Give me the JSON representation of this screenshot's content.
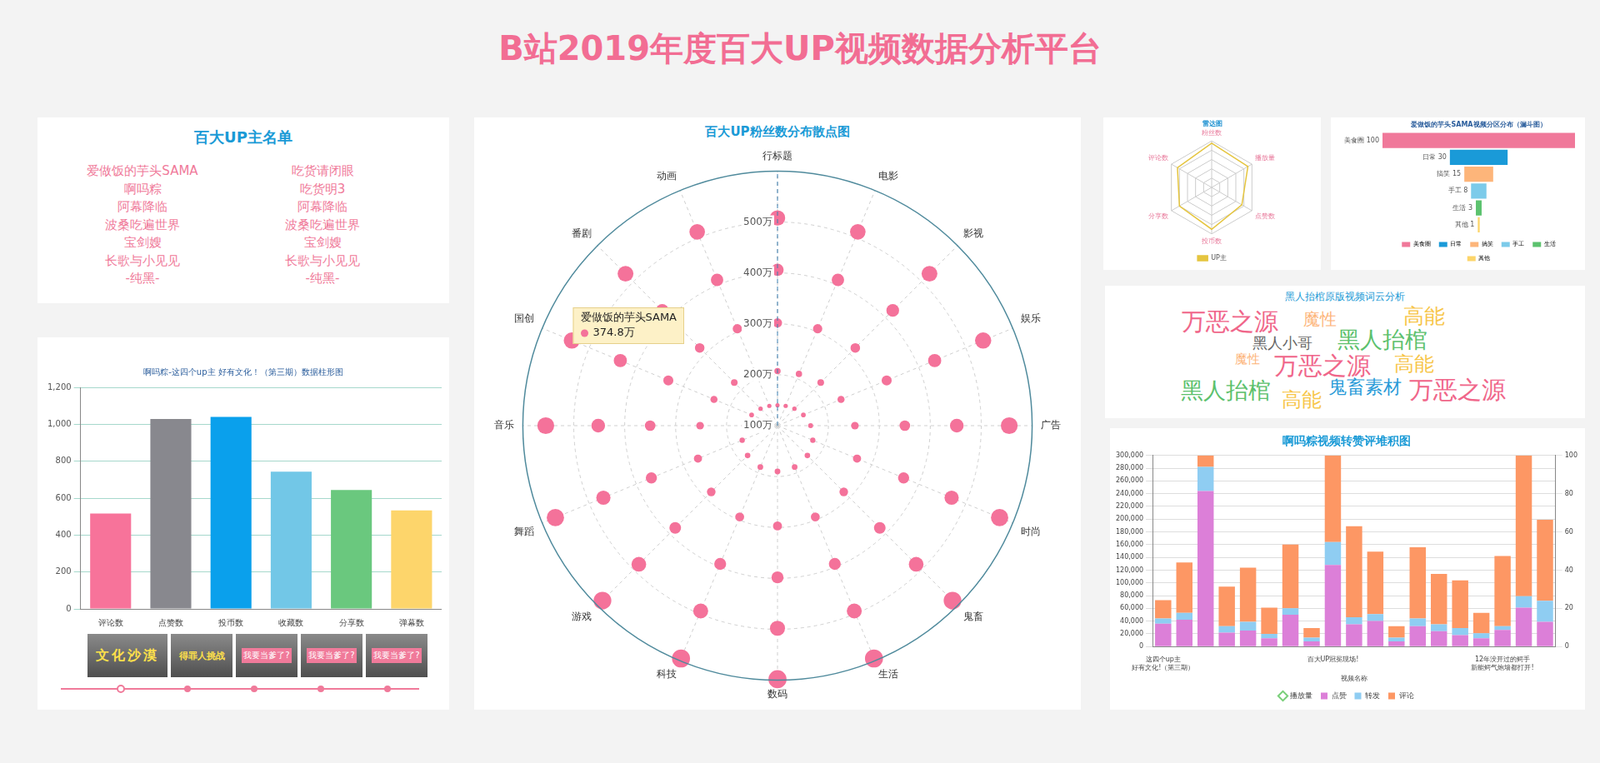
{
  "title": "B站2019年度百大UP视频数据分析平台",
  "name_list": {
    "title": "百大UP主名单",
    "columns": [
      [
        "爱做饭的芋头SAMA",
        "啊吗粽",
        "阿幕降临",
        "波桑吃遍世界",
        "宝剑嫂",
        "长歌与小见见",
        "-纯黑-"
      ],
      [
        "吃货请闭眼",
        "吃货明3",
        "阿幕降临",
        "波桑吃遍世界",
        "宝剑嫂",
        "长歌与小见见",
        "-纯黑-"
      ]
    ]
  },
  "chart_data": [
    {
      "type": "bar",
      "title": "啊吗粽-这四个up主 好有文化！（第三期）数据柱形图",
      "categories": [
        "评论数",
        "点赞数",
        "投币数",
        "收藏数",
        "分享数",
        "弹幕数"
      ],
      "values": [
        517,
        1029,
        1040,
        743,
        644,
        534
      ],
      "colors": [
        "#f7739a",
        "#88888e",
        "#0aa0ec",
        "#72c7e7",
        "#6ac87e",
        "#fdd56b"
      ],
      "ylim": [
        0,
        1200
      ],
      "yticks": [
        0,
        200,
        400,
        600,
        800,
        {
          "value": 1000,
          "label": "1,000"
        },
        {
          "value": 1200,
          "label": "1,200"
        }
      ],
      "grid": true,
      "thumbnails": [
        "文化沙漠",
        "得罪人挑战",
        "我要当爹了?",
        "我要当爹了?",
        "我要当爹了?"
      ]
    },
    {
      "type": "scatter",
      "title": "百大UP粉丝数分布散点图",
      "categories": [
        "行标题",
        "电影",
        "影视",
        "娱乐",
        "广告",
        "时尚",
        "鬼畜",
        "生活",
        "数码",
        "科技",
        "游戏",
        "舞蹈",
        "音乐",
        "国创",
        "番剧",
        "动画"
      ],
      "ylim": [
        100,
        600
      ],
      "yticks": [
        {
          "value": 100,
          "label": "100万"
        },
        {
          "value": 200,
          "label": "200万"
        },
        {
          "value": 300,
          "label": "300万"
        },
        {
          "value": 400,
          "label": "400万"
        },
        {
          "value": 500,
          "label": "500万"
        }
      ],
      "grid": true,
      "series": [
        {
          "color": "#f4729a",
          "values": [
            508,
            512,
            522,
            537,
            555,
            572,
            586,
            595,
            598,
            595,
            586,
            572,
            555,
            537,
            522,
            512
          ]
        },
        {
          "color": "#f4729a",
          "values": [
            406,
            410,
            420,
            434,
            452,
            470,
            485,
            494,
            498,
            494,
            485,
            470,
            452,
            434,
            420,
            410
          ]
        },
        {
          "color": "#f4729a",
          "values": [
            302,
            306,
            316,
            332,
            350,
            368,
            384,
            394,
            398,
            394,
            384,
            368,
            350,
            332,
            316,
            306
          ]
        },
        {
          "color": "#f4729a",
          "values": [
            207,
            210,
            220,
            235,
            252,
            269,
            284,
            294,
            297,
            294,
            284,
            269,
            252,
            235,
            220,
            210
          ]
        },
        {
          "color": "#f4729a",
          "values": [
            140,
            142,
            147,
            155,
            165,
            175,
            183,
            188,
            190,
            188,
            183,
            175,
            165,
            155,
            147,
            142
          ]
        }
      ],
      "annotations": [
        {
          "title": "爱做饭的芋头SAMA",
          "text": "374.8万"
        }
      ]
    },
    {
      "type": "radar",
      "title": "雷达图",
      "categories": [
        "粉丝数",
        "播放量",
        "点赞数",
        "投币数",
        "分享数",
        "评论数"
      ],
      "series": [
        {
          "name": "UP主",
          "color": "#e5c53f",
          "values": [
            95,
            90,
            75,
            90,
            80,
            85
          ]
        }
      ],
      "ylim": [
        0,
        100
      ],
      "yticks": [
        0,
        20,
        40,
        60,
        80,
        100
      ],
      "tick_labels": false,
      "grid": true,
      "legend": "bottom"
    },
    {
      "type": "funnel",
      "title": "爱做饭的芋头SAMA视频分区分布（漏斗图）",
      "categories": [
        "美食圈",
        "日常",
        "搞笑",
        "手工",
        "生活",
        "其他"
      ],
      "values": [
        100,
        30,
        15,
        8,
        3,
        1
      ],
      "colors": [
        "#f0789a",
        "#1a9ad8",
        "#fdb57a",
        "#7ccbea",
        "#5cc26e",
        "#fcd56a"
      ],
      "data_labels": true,
      "legend": "bottom"
    },
    {
      "type": "bar",
      "title": "啊吗粽视频转赞评堆积图",
      "x_label": "视频名称",
      "categories": [
        "这四个up主 好有文化!（第三期）",
        null,
        null,
        null,
        null,
        null,
        null,
        null,
        "百大UP冠冕现场!",
        null,
        null,
        null,
        null,
        null,
        null,
        null,
        "12年没开过的鳄手 新能鳄气炮墙都打开!",
        null,
        null
      ],
      "stacked": true,
      "grid": true,
      "legend": "bottom",
      "series": [
        {
          "name": "播放量",
          "type": "line",
          "axis": "y2",
          "marker": "diamond",
          "color": "#79cf79",
          "values": [
            null,
            null,
            null,
            null,
            null,
            null,
            null,
            null,
            null,
            null,
            null,
            null,
            null,
            null,
            null,
            null,
            null,
            null,
            null
          ]
        },
        {
          "name": "点赞",
          "color": "#dc7fd8",
          "values": [
            36000,
            42000,
            244000,
            22000,
            25000,
            13000,
            50000,
            8000,
            128000,
            35000,
            40000,
            8000,
            32000,
            24000,
            18000,
            13000,
            26000,
            61000,
            39000
          ]
        },
        {
          "name": "转发",
          "color": "#8fcdf2",
          "values": [
            8000,
            11000,
            38000,
            10000,
            14000,
            7000,
            10000,
            6000,
            36000,
            11000,
            11000,
            6000,
            12000,
            11000,
            11000,
            8000,
            6000,
            18000,
            33000
          ]
        },
        {
          "name": "评论",
          "color": "#fd9764",
          "values": [
            29000,
            79000,
            18000,
            62000,
            85000,
            41000,
            100000,
            15000,
            136000,
            143000,
            98000,
            18000,
            112000,
            79000,
            75000,
            32000,
            110000,
            221000,
            127000
          ]
        }
      ],
      "ylim": [
        0,
        300000
      ],
      "yticks": [
        0,
        {
          "value": 20000,
          "label": "20,000"
        },
        {
          "value": 40000,
          "label": "40,000"
        },
        {
          "value": 60000,
          "label": "60,000"
        },
        {
          "value": 80000,
          "label": "80,000"
        },
        {
          "value": 100000,
          "label": "100,000"
        },
        {
          "value": 120000,
          "label": "120,000"
        },
        {
          "value": 140000,
          "label": "140,000"
        },
        {
          "value": 160000,
          "label": "160,000"
        },
        {
          "value": 180000,
          "label": "180,000"
        },
        {
          "value": 200000,
          "label": "200,000"
        },
        {
          "value": 220000,
          "label": "220,000"
        },
        {
          "value": 240000,
          "label": "240,000"
        },
        {
          "value": 260000,
          "label": "260,000"
        },
        {
          "value": 280000,
          "label": "280,000"
        },
        {
          "value": 300000,
          "label": "300,000"
        }
      ],
      "y2lim": [
        0,
        100
      ],
      "y2ticks": [
        0,
        20,
        40,
        60,
        80,
        100
      ]
    }
  ],
  "word_cloud": {
    "title": "黑人抬棺原版视频词云分析",
    "words": [
      {
        "text": "万恶之源",
        "color": "#f0668a"
      },
      {
        "text": "魔性",
        "color": "#fdb57a"
      },
      {
        "text": "高能",
        "color": "#f7c64a"
      },
      {
        "text": "黑人小哥",
        "color": "#666666"
      },
      {
        "text": "黑人抬棺",
        "color": "#5cc16d"
      },
      {
        "text": "魔性",
        "color": "#fdb57a"
      },
      {
        "text": "万恶之源",
        "color": "#f0668a"
      },
      {
        "text": "高能",
        "color": "#f7c64a"
      },
      {
        "text": "黑人抬棺",
        "color": "#5cc16d"
      },
      {
        "text": "鬼畜素材",
        "color": "#2a9bd8"
      },
      {
        "text": "万恶之源",
        "color": "#f0668a"
      },
      {
        "text": "高能",
        "color": "#f7c64a"
      }
    ]
  }
}
